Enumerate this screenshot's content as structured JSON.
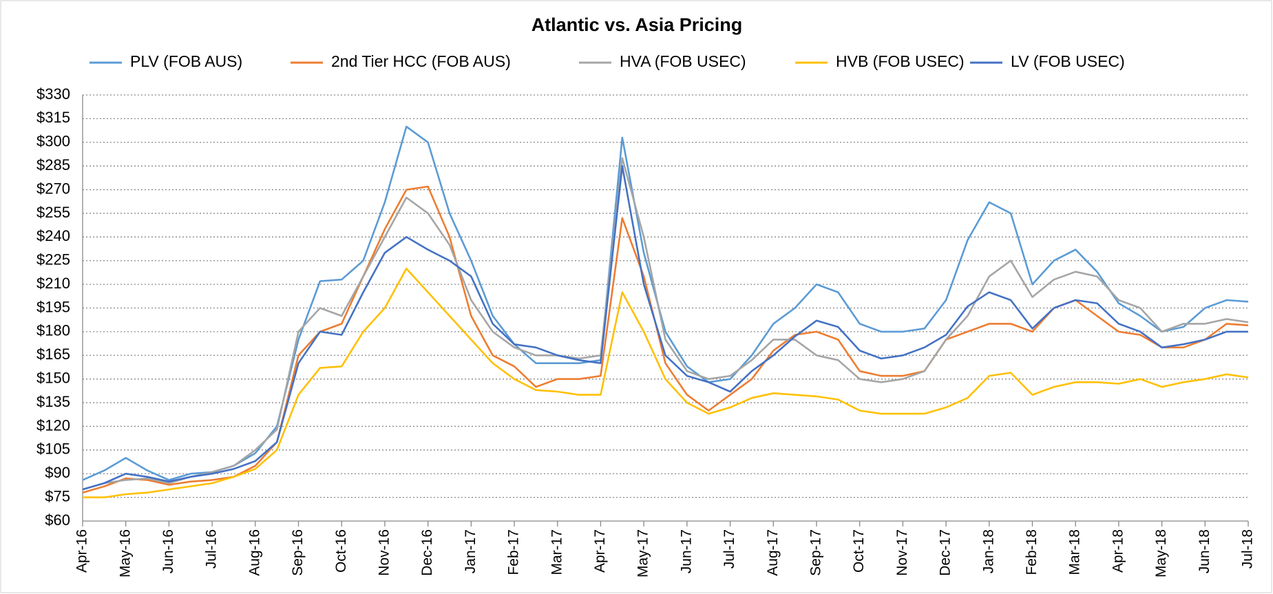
{
  "chart_data": {
    "type": "line",
    "title": "Atlantic vs. Asia Pricing",
    "categories": [
      "Apr-16",
      null,
      "May-16",
      null,
      "Jun-16",
      null,
      "Jul-16",
      null,
      "Aug-16",
      null,
      "Sep-16",
      null,
      "Oct-16",
      null,
      "Nov-16",
      null,
      "Dec-16",
      null,
      "Jan-17",
      null,
      "Feb-17",
      null,
      "Mar-17",
      null,
      "Apr-17",
      null,
      "May-17",
      null,
      "Jun-17",
      null,
      "Jul-17",
      null,
      "Aug-17",
      null,
      "Sep-17",
      null,
      "Oct-17",
      null,
      "Nov-17",
      null,
      "Dec-17",
      null,
      "Jan-18",
      null,
      "Feb-18",
      null,
      "Mar-18",
      null,
      "Apr-18",
      null,
      "May-18",
      null,
      "Jun-18",
      null,
      "Jul-18"
    ],
    "series": [
      {
        "name": "PLV (FOB AUS)",
        "color": "#5b9bd5",
        "values": [
          86,
          92,
          100,
          92,
          86,
          90,
          91,
          95,
          103,
          120,
          175,
          212,
          213,
          225,
          262,
          310,
          300,
          255,
          225,
          190,
          172,
          160,
          160,
          160,
          162,
          303,
          230,
          180,
          158,
          148,
          150,
          165,
          185,
          195,
          210,
          205,
          185,
          180,
          180,
          182,
          200,
          238,
          262,
          255,
          210,
          225,
          232,
          218,
          198,
          190,
          180,
          183,
          195,
          200,
          199
        ]
      },
      {
        "name": "2nd Tier HCC (FOB AUS)",
        "color": "#ed7d31",
        "values": [
          78,
          82,
          87,
          86,
          83,
          85,
          86,
          88,
          95,
          110,
          165,
          180,
          185,
          215,
          245,
          270,
          272,
          240,
          190,
          165,
          158,
          145,
          150,
          150,
          152,
          252,
          215,
          160,
          140,
          130,
          140,
          150,
          168,
          178,
          180,
          175,
          155,
          152,
          152,
          155,
          175,
          180,
          185,
          185,
          180,
          195,
          200,
          190,
          180,
          178,
          170,
          170,
          175,
          185,
          184
        ]
      },
      {
        "name": "HVA (FOB USEC)",
        "color": "#a5a5a5",
        "values": [
          80,
          84,
          86,
          87,
          84,
          88,
          91,
          95,
          105,
          118,
          180,
          195,
          190,
          215,
          240,
          265,
          255,
          235,
          200,
          180,
          170,
          165,
          165,
          163,
          165,
          290,
          240,
          175,
          155,
          150,
          152,
          162,
          175,
          175,
          165,
          162,
          150,
          148,
          150,
          155,
          175,
          190,
          215,
          225,
          202,
          213,
          218,
          215,
          200,
          195,
          180,
          185,
          185,
          188,
          186
        ]
      },
      {
        "name": "HVB (FOB USEC)",
        "color": "#ffc000",
        "values": [
          75,
          75,
          77,
          78,
          80,
          82,
          84,
          88,
          93,
          105,
          140,
          157,
          158,
          180,
          195,
          220,
          205,
          190,
          175,
          160,
          150,
          143,
          142,
          140,
          140,
          205,
          180,
          150,
          135,
          128,
          132,
          138,
          141,
          140,
          139,
          137,
          130,
          128,
          128,
          128,
          132,
          138,
          152,
          154,
          140,
          145,
          148,
          148,
          147,
          150,
          145,
          148,
          150,
          153,
          151
        ]
      },
      {
        "name": "LV (FOB USEC)",
        "color": "#4472c4",
        "values": [
          80,
          84,
          90,
          88,
          85,
          88,
          90,
          93,
          98,
          110,
          160,
          180,
          178,
          205,
          230,
          240,
          232,
          225,
          215,
          185,
          172,
          170,
          165,
          162,
          160,
          285,
          210,
          165,
          152,
          148,
          142,
          155,
          165,
          177,
          187,
          183,
          168,
          163,
          165,
          170,
          178,
          196,
          205,
          200,
          182,
          195,
          200,
          198,
          185,
          180,
          170,
          172,
          175,
          180,
          180
        ]
      }
    ],
    "ylim": [
      60,
      330
    ],
    "yticks": [
      {
        "value": 60,
        "label": "$60"
      },
      {
        "value": 75,
        "label": "$75"
      },
      {
        "value": 90,
        "label": "$90"
      },
      {
        "value": 105,
        "label": "$105"
      },
      {
        "value": 120,
        "label": "$120"
      },
      {
        "value": 135,
        "label": "$135"
      },
      {
        "value": 150,
        "label": "$150"
      },
      {
        "value": 165,
        "label": "$165"
      },
      {
        "value": 180,
        "label": "$180"
      },
      {
        "value": 195,
        "label": "$195"
      },
      {
        "value": 210,
        "label": "$210"
      },
      {
        "value": 225,
        "label": "$225"
      },
      {
        "value": 240,
        "label": "$240"
      },
      {
        "value": 255,
        "label": "$255"
      },
      {
        "value": 270,
        "label": "$270"
      },
      {
        "value": 285,
        "label": "$285"
      },
      {
        "value": 300,
        "label": "$300"
      },
      {
        "value": 315,
        "label": "$315"
      },
      {
        "value": 330,
        "label": "$330"
      }
    ],
    "grid": true,
    "legend": "top"
  }
}
